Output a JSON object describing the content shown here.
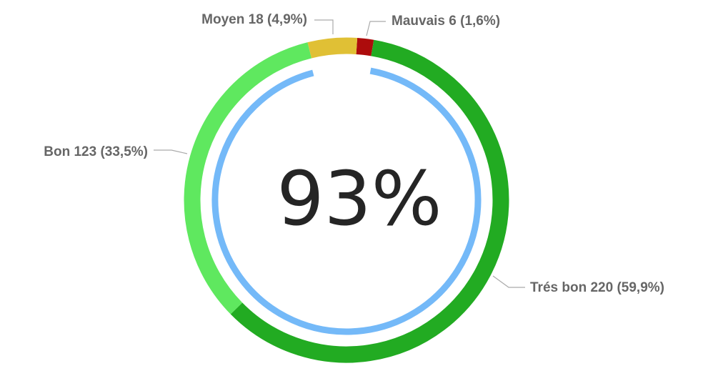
{
  "chart_data": {
    "type": "donut",
    "categories": [
      "Mauvais",
      "Trés bon",
      "Bon",
      "Moyen"
    ],
    "values": [
      6,
      220,
      123,
      18
    ],
    "value_labels": [
      "6 (1,6%)",
      "220 (59,9%)",
      "123 (33,5%)",
      "18 (4,9%)"
    ],
    "colors": [
      "#ad0c0c",
      "#22ab22",
      "#5fe85f",
      "#e0c035"
    ],
    "gauge_value": 93,
    "gauge_label": "93%",
    "gauge_color": "#74b9f8"
  }
}
